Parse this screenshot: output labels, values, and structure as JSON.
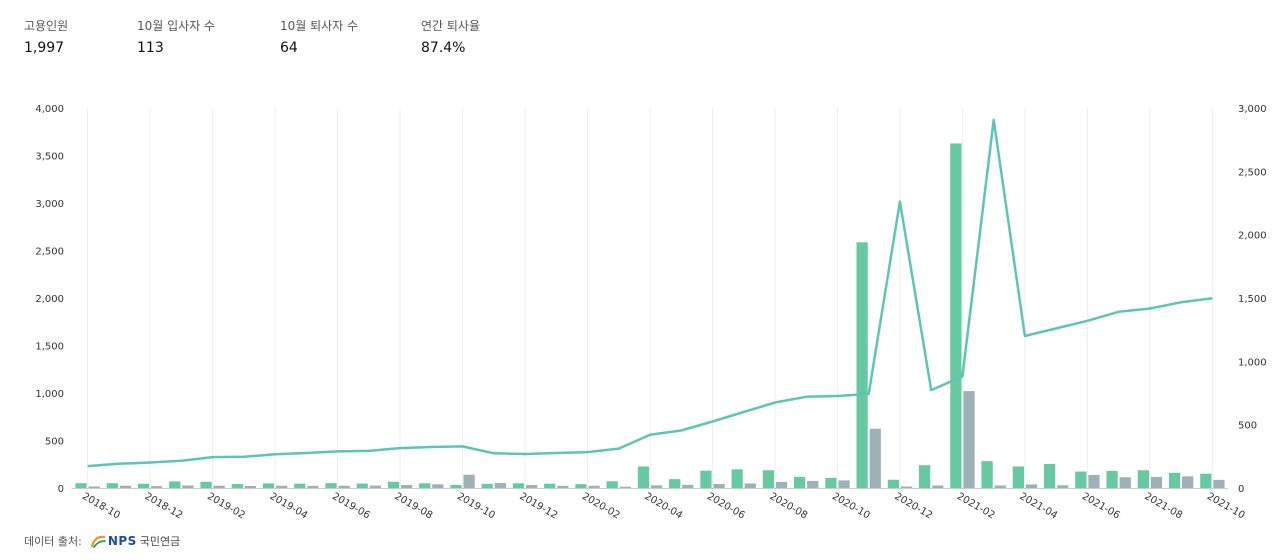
{
  "stats": [
    {
      "label": "고용인원",
      "value": "1,997"
    },
    {
      "label": "10월 입사자 수",
      "value": "113"
    },
    {
      "label": "10월 퇴사자 수",
      "value": "64"
    },
    {
      "label": "연간 퇴사율",
      "value": "87.4%"
    }
  ],
  "source": {
    "label": "데이터 출처:",
    "logo_text": "NPS",
    "org_name": "국민연금"
  },
  "colors": {
    "hires": "#66c9a2",
    "leaves": "#9fb1b8",
    "employees_line": "#5ec4b6",
    "grid": "#eeeeee"
  },
  "chart_data": {
    "type": "bar+line",
    "months": [
      "2018-10",
      "2018-11",
      "2018-12",
      "2019-01",
      "2019-02",
      "2019-03",
      "2019-04",
      "2019-05",
      "2019-06",
      "2019-07",
      "2019-08",
      "2019-09",
      "2019-10",
      "2019-11",
      "2019-12",
      "2020-01",
      "2020-02",
      "2020-03",
      "2020-04",
      "2020-05",
      "2020-06",
      "2020-07",
      "2020-08",
      "2020-09",
      "2020-10",
      "2020-11",
      "2020-12",
      "2021-01",
      "2021-02",
      "2021-03",
      "2021-04",
      "2021-05",
      "2021-06",
      "2021-07",
      "2021-08",
      "2021-09",
      "2021-10"
    ],
    "x_tick_labels": [
      "2018-10",
      "2018-12",
      "2019-02",
      "2019-04",
      "2019-06",
      "2019-08",
      "2019-10",
      "2019-12",
      "2020-02",
      "2020-04",
      "2020-06",
      "2020-08",
      "2020-10",
      "2020-12",
      "2021-02",
      "2021-04",
      "2021-06",
      "2021-08",
      "2021-10"
    ],
    "left_axis": {
      "ticks": [
        "0",
        "500",
        "1,000",
        "1,500",
        "2,000",
        "2,500",
        "3,000",
        "3,500",
        "4,000"
      ],
      "ylim": [
        0,
        4000
      ]
    },
    "right_axis": {
      "ticks": [
        "0",
        "500",
        "1,000",
        "1,500",
        "2,000",
        "2,500",
        "3,000"
      ],
      "ylim": [
        0,
        3000
      ]
    },
    "series": [
      {
        "axis": "right",
        "kind": "bar",
        "values": [
          38,
          38,
          34,
          52,
          49,
          32,
          36,
          34,
          38,
          35,
          49,
          37,
          24,
          33,
          37,
          34,
          30,
          53,
          170,
          70,
          137,
          147,
          140,
          88,
          80,
          1940,
          65,
          180,
          2720,
          212,
          170,
          190,
          130,
          135,
          140,
          120,
          113
        ]
      },
      {
        "axis": "right",
        "kind": "bar",
        "values": [
          12,
          18,
          15,
          20,
          18,
          16,
          18,
          17,
          18,
          19,
          24,
          29,
          105,
          40,
          24,
          17,
          18,
          10,
          21,
          25,
          32,
          36,
          48,
          56,
          60,
          468,
          12,
          20,
          765,
          20,
          28,
          22,
          103,
          85,
          88,
          92,
          64
        ]
      },
      {
        "axis": "left",
        "kind": "line",
        "values": [
          230,
          255,
          268,
          287,
          325,
          328,
          355,
          368,
          385,
          390,
          420,
          432,
          438,
          365,
          358,
          368,
          378,
          415,
          560,
          605,
          700,
          800,
          900,
          960,
          968,
          990,
          3015,
          1030,
          1175,
          3875,
          1600,
          1680,
          1760,
          1855,
          1890,
          1955,
          1997
        ]
      }
    ]
  }
}
